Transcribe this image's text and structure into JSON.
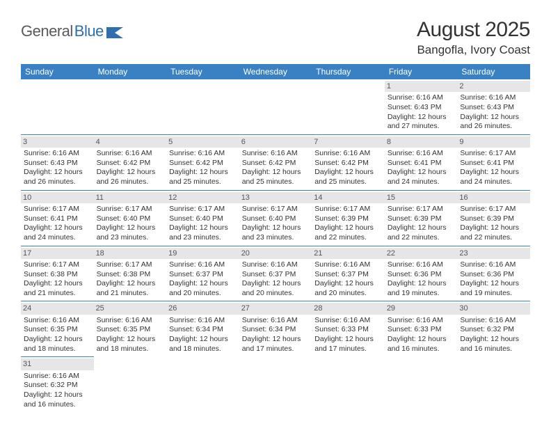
{
  "logo": {
    "text1": "General",
    "text2": "Blue"
  },
  "title": "August 2025",
  "location": "Bangofla, Ivory Coast",
  "colors": {
    "header_bg": "#3a81c4",
    "header_fg": "#ffffff",
    "daynum_bg": "#e6e6e6",
    "row_border": "#3a81c4",
    "logo_gray": "#5a5a5a",
    "logo_blue": "#2f6fb0"
  },
  "weekdays": [
    "Sunday",
    "Monday",
    "Tuesday",
    "Wednesday",
    "Thursday",
    "Friday",
    "Saturday"
  ],
  "cells": [
    {
      "day": "",
      "sunrise": "",
      "sunset": "",
      "daylight": ""
    },
    {
      "day": "",
      "sunrise": "",
      "sunset": "",
      "daylight": ""
    },
    {
      "day": "",
      "sunrise": "",
      "sunset": "",
      "daylight": ""
    },
    {
      "day": "",
      "sunrise": "",
      "sunset": "",
      "daylight": ""
    },
    {
      "day": "",
      "sunrise": "",
      "sunset": "",
      "daylight": ""
    },
    {
      "day": "1",
      "sunrise": "Sunrise: 6:16 AM",
      "sunset": "Sunset: 6:43 PM",
      "daylight": "Daylight: 12 hours and 27 minutes."
    },
    {
      "day": "2",
      "sunrise": "Sunrise: 6:16 AM",
      "sunset": "Sunset: 6:43 PM",
      "daylight": "Daylight: 12 hours and 26 minutes."
    },
    {
      "day": "3",
      "sunrise": "Sunrise: 6:16 AM",
      "sunset": "Sunset: 6:43 PM",
      "daylight": "Daylight: 12 hours and 26 minutes."
    },
    {
      "day": "4",
      "sunrise": "Sunrise: 6:16 AM",
      "sunset": "Sunset: 6:42 PM",
      "daylight": "Daylight: 12 hours and 26 minutes."
    },
    {
      "day": "5",
      "sunrise": "Sunrise: 6:16 AM",
      "sunset": "Sunset: 6:42 PM",
      "daylight": "Daylight: 12 hours and 25 minutes."
    },
    {
      "day": "6",
      "sunrise": "Sunrise: 6:16 AM",
      "sunset": "Sunset: 6:42 PM",
      "daylight": "Daylight: 12 hours and 25 minutes."
    },
    {
      "day": "7",
      "sunrise": "Sunrise: 6:16 AM",
      "sunset": "Sunset: 6:42 PM",
      "daylight": "Daylight: 12 hours and 25 minutes."
    },
    {
      "day": "8",
      "sunrise": "Sunrise: 6:16 AM",
      "sunset": "Sunset: 6:41 PM",
      "daylight": "Daylight: 12 hours and 24 minutes."
    },
    {
      "day": "9",
      "sunrise": "Sunrise: 6:17 AM",
      "sunset": "Sunset: 6:41 PM",
      "daylight": "Daylight: 12 hours and 24 minutes."
    },
    {
      "day": "10",
      "sunrise": "Sunrise: 6:17 AM",
      "sunset": "Sunset: 6:41 PM",
      "daylight": "Daylight: 12 hours and 24 minutes."
    },
    {
      "day": "11",
      "sunrise": "Sunrise: 6:17 AM",
      "sunset": "Sunset: 6:40 PM",
      "daylight": "Daylight: 12 hours and 23 minutes."
    },
    {
      "day": "12",
      "sunrise": "Sunrise: 6:17 AM",
      "sunset": "Sunset: 6:40 PM",
      "daylight": "Daylight: 12 hours and 23 minutes."
    },
    {
      "day": "13",
      "sunrise": "Sunrise: 6:17 AM",
      "sunset": "Sunset: 6:40 PM",
      "daylight": "Daylight: 12 hours and 23 minutes."
    },
    {
      "day": "14",
      "sunrise": "Sunrise: 6:17 AM",
      "sunset": "Sunset: 6:39 PM",
      "daylight": "Daylight: 12 hours and 22 minutes."
    },
    {
      "day": "15",
      "sunrise": "Sunrise: 6:17 AM",
      "sunset": "Sunset: 6:39 PM",
      "daylight": "Daylight: 12 hours and 22 minutes."
    },
    {
      "day": "16",
      "sunrise": "Sunrise: 6:17 AM",
      "sunset": "Sunset: 6:39 PM",
      "daylight": "Daylight: 12 hours and 22 minutes."
    },
    {
      "day": "17",
      "sunrise": "Sunrise: 6:17 AM",
      "sunset": "Sunset: 6:38 PM",
      "daylight": "Daylight: 12 hours and 21 minutes."
    },
    {
      "day": "18",
      "sunrise": "Sunrise: 6:17 AM",
      "sunset": "Sunset: 6:38 PM",
      "daylight": "Daylight: 12 hours and 21 minutes."
    },
    {
      "day": "19",
      "sunrise": "Sunrise: 6:16 AM",
      "sunset": "Sunset: 6:37 PM",
      "daylight": "Daylight: 12 hours and 20 minutes."
    },
    {
      "day": "20",
      "sunrise": "Sunrise: 6:16 AM",
      "sunset": "Sunset: 6:37 PM",
      "daylight": "Daylight: 12 hours and 20 minutes."
    },
    {
      "day": "21",
      "sunrise": "Sunrise: 6:16 AM",
      "sunset": "Sunset: 6:37 PM",
      "daylight": "Daylight: 12 hours and 20 minutes."
    },
    {
      "day": "22",
      "sunrise": "Sunrise: 6:16 AM",
      "sunset": "Sunset: 6:36 PM",
      "daylight": "Daylight: 12 hours and 19 minutes."
    },
    {
      "day": "23",
      "sunrise": "Sunrise: 6:16 AM",
      "sunset": "Sunset: 6:36 PM",
      "daylight": "Daylight: 12 hours and 19 minutes."
    },
    {
      "day": "24",
      "sunrise": "Sunrise: 6:16 AM",
      "sunset": "Sunset: 6:35 PM",
      "daylight": "Daylight: 12 hours and 18 minutes."
    },
    {
      "day": "25",
      "sunrise": "Sunrise: 6:16 AM",
      "sunset": "Sunset: 6:35 PM",
      "daylight": "Daylight: 12 hours and 18 minutes."
    },
    {
      "day": "26",
      "sunrise": "Sunrise: 6:16 AM",
      "sunset": "Sunset: 6:34 PM",
      "daylight": "Daylight: 12 hours and 18 minutes."
    },
    {
      "day": "27",
      "sunrise": "Sunrise: 6:16 AM",
      "sunset": "Sunset: 6:34 PM",
      "daylight": "Daylight: 12 hours and 17 minutes."
    },
    {
      "day": "28",
      "sunrise": "Sunrise: 6:16 AM",
      "sunset": "Sunset: 6:33 PM",
      "daylight": "Daylight: 12 hours and 17 minutes."
    },
    {
      "day": "29",
      "sunrise": "Sunrise: 6:16 AM",
      "sunset": "Sunset: 6:33 PM",
      "daylight": "Daylight: 12 hours and 16 minutes."
    },
    {
      "day": "30",
      "sunrise": "Sunrise: 6:16 AM",
      "sunset": "Sunset: 6:32 PM",
      "daylight": "Daylight: 12 hours and 16 minutes."
    },
    {
      "day": "31",
      "sunrise": "Sunrise: 6:16 AM",
      "sunset": "Sunset: 6:32 PM",
      "daylight": "Daylight: 12 hours and 16 minutes."
    },
    {
      "day": "",
      "sunrise": "",
      "sunset": "",
      "daylight": ""
    },
    {
      "day": "",
      "sunrise": "",
      "sunset": "",
      "daylight": ""
    },
    {
      "day": "",
      "sunrise": "",
      "sunset": "",
      "daylight": ""
    },
    {
      "day": "",
      "sunrise": "",
      "sunset": "",
      "daylight": ""
    },
    {
      "day": "",
      "sunrise": "",
      "sunset": "",
      "daylight": ""
    },
    {
      "day": "",
      "sunrise": "",
      "sunset": "",
      "daylight": ""
    }
  ]
}
